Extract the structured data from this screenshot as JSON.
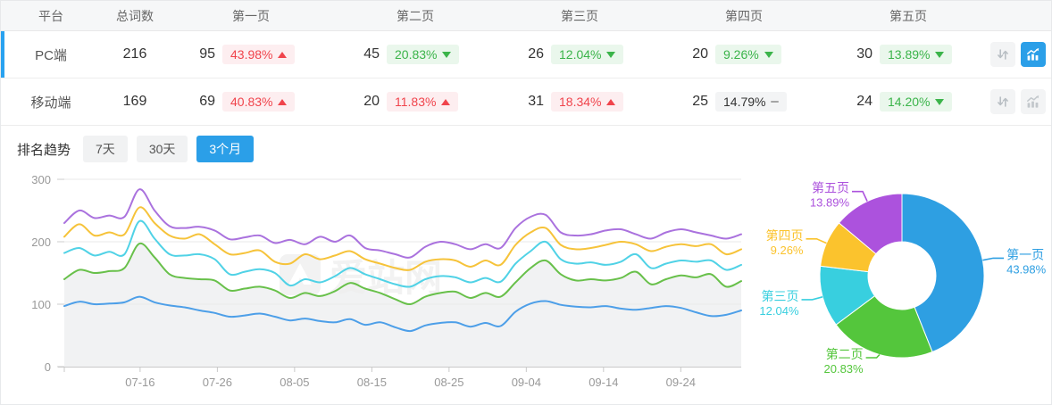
{
  "accent": "#2b9fe8",
  "watermark": "爱站网",
  "table": {
    "columns": [
      "平台",
      "总词数",
      "第一页",
      "第二页",
      "第三页",
      "第四页",
      "第五页"
    ],
    "rows": [
      {
        "platform": "PC端",
        "total": "216",
        "active": true,
        "pages": [
          {
            "count": "95",
            "pct": "43.98%",
            "dir": "up",
            "tone": "red"
          },
          {
            "count": "45",
            "pct": "20.83%",
            "dir": "down",
            "tone": "green"
          },
          {
            "count": "26",
            "pct": "12.04%",
            "dir": "down",
            "tone": "green"
          },
          {
            "count": "20",
            "pct": "9.26%",
            "dir": "down",
            "tone": "green"
          },
          {
            "count": "30",
            "pct": "13.89%",
            "dir": "down",
            "tone": "green"
          }
        ]
      },
      {
        "platform": "移动端",
        "total": "169",
        "active": false,
        "pages": [
          {
            "count": "69",
            "pct": "40.83%",
            "dir": "up",
            "tone": "red"
          },
          {
            "count": "20",
            "pct": "11.83%",
            "dir": "up",
            "tone": "red"
          },
          {
            "count": "31",
            "pct": "18.34%",
            "dir": "up",
            "tone": "red"
          },
          {
            "count": "25",
            "pct": "14.79%",
            "dir": "flat",
            "tone": "gray"
          },
          {
            "count": "24",
            "pct": "14.20%",
            "dir": "down",
            "tone": "green"
          }
        ]
      }
    ]
  },
  "trend": {
    "title": "排名趋势",
    "tabs": [
      {
        "label": "7天",
        "active": false
      },
      {
        "label": "30天",
        "active": false
      },
      {
        "label": "3个月",
        "active": true
      }
    ]
  },
  "chart_data": [
    {
      "type": "line",
      "title": "排名趋势（3个月）",
      "x_labels": [
        "07-16",
        "07-26",
        "08-05",
        "08-15",
        "08-25",
        "09-04",
        "09-14",
        "09-24"
      ],
      "first_label_frac": 0.112,
      "label_step_frac": 0.1141,
      "y_ticks": [
        0,
        100,
        200,
        300
      ],
      "ylim": [
        0,
        300
      ],
      "grid": true,
      "legend_position": "none",
      "series": [
        {
          "name": "blue",
          "color": "#4d9fe8",
          "area": false,
          "values": [
            97,
            104,
            100,
            101,
            103,
            112,
            103,
            98,
            95,
            90,
            86,
            80,
            82,
            85,
            80,
            74,
            77,
            73,
            71,
            76,
            67,
            71,
            63,
            57,
            66,
            70,
            71,
            64,
            70,
            65,
            88,
            101,
            105,
            99,
            96,
            95,
            97,
            93,
            91,
            94,
            97,
            94,
            87,
            81,
            83,
            90
          ]
        },
        {
          "name": "green",
          "color": "#68c04a",
          "area": true,
          "area_color": "#f1f2f3",
          "values": [
            140,
            155,
            150,
            153,
            158,
            197,
            175,
            148,
            142,
            140,
            138,
            122,
            125,
            128,
            122,
            110,
            118,
            113,
            121,
            134,
            125,
            118,
            108,
            100,
            112,
            118,
            120,
            110,
            118,
            112,
            135,
            158,
            170,
            148,
            138,
            140,
            138,
            142,
            152,
            132,
            140,
            146,
            143,
            148,
            128,
            137
          ]
        },
        {
          "name": "cyan",
          "color": "#50d2e6",
          "area": false,
          "values": [
            182,
            190,
            178,
            184,
            180,
            233,
            205,
            180,
            178,
            180,
            172,
            148,
            152,
            156,
            150,
            130,
            140,
            135,
            145,
            158,
            148,
            140,
            132,
            128,
            140,
            145,
            143,
            135,
            142,
            136,
            165,
            185,
            200,
            172,
            165,
            167,
            163,
            168,
            180,
            158,
            165,
            170,
            168,
            170,
            155,
            163
          ]
        },
        {
          "name": "yellow",
          "color": "#f6c33a",
          "area": false,
          "values": [
            208,
            228,
            210,
            215,
            212,
            255,
            230,
            210,
            205,
            212,
            196,
            180,
            182,
            186,
            168,
            165,
            180,
            172,
            178,
            185,
            172,
            165,
            158,
            155,
            168,
            172,
            170,
            160,
            170,
            163,
            195,
            215,
            222,
            195,
            188,
            190,
            195,
            200,
            196,
            185,
            192,
            196,
            193,
            196,
            180,
            188
          ]
        },
        {
          "name": "purple",
          "color": "#aa72de",
          "area": false,
          "values": [
            230,
            250,
            238,
            242,
            240,
            284,
            250,
            225,
            222,
            224,
            218,
            204,
            207,
            210,
            198,
            203,
            196,
            208,
            200,
            210,
            190,
            186,
            180,
            175,
            192,
            200,
            196,
            188,
            196,
            190,
            222,
            240,
            243,
            215,
            210,
            212,
            218,
            220,
            212,
            205,
            215,
            220,
            215,
            210,
            205,
            212
          ]
        }
      ]
    },
    {
      "type": "pie",
      "donut": true,
      "slices": [
        {
          "label": "第一页",
          "pct": "43.98%",
          "value": 43.98,
          "color": "#2e9fe2"
        },
        {
          "label": "第二页",
          "pct": "20.83%",
          "value": 20.83,
          "color": "#54c63c"
        },
        {
          "label": "第三页",
          "pct": "12.04%",
          "value": 12.04,
          "color": "#38cfdf"
        },
        {
          "label": "第四页",
          "pct": "9.26%",
          "value": 9.26,
          "color": "#fbc32d"
        },
        {
          "label": "第五页",
          "pct": "13.89%",
          "value": 13.89,
          "color": "#ac52dd"
        }
      ]
    }
  ]
}
